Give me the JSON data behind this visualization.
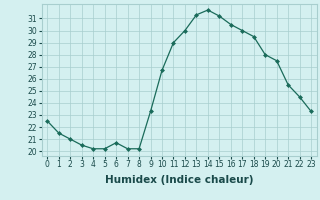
{
  "x": [
    0,
    1,
    2,
    3,
    4,
    5,
    6,
    7,
    8,
    9,
    10,
    11,
    12,
    13,
    14,
    15,
    16,
    17,
    18,
    19,
    20,
    21,
    22,
    23
  ],
  "y": [
    22.5,
    21.5,
    21.0,
    20.5,
    20.2,
    20.2,
    20.7,
    20.2,
    20.2,
    23.3,
    26.7,
    29.0,
    30.0,
    31.3,
    31.7,
    31.2,
    30.5,
    30.0,
    29.5,
    28.0,
    27.5,
    25.5,
    24.5,
    23.3
  ],
  "line_color": "#1a6b5a",
  "marker": "D",
  "marker_size": 2.0,
  "bg_color": "#d4f0f0",
  "grid_color": "#a8cece",
  "xlabel": "Humidex (Indice chaleur)",
  "ylabel_ticks": [
    20,
    21,
    22,
    23,
    24,
    25,
    26,
    27,
    28,
    29,
    30,
    31
  ],
  "ylim": [
    19.6,
    32.2
  ],
  "xlim": [
    -0.5,
    23.5
  ],
  "xticks": [
    0,
    1,
    2,
    3,
    4,
    5,
    6,
    7,
    8,
    9,
    10,
    11,
    12,
    13,
    14,
    15,
    16,
    17,
    18,
    19,
    20,
    21,
    22,
    23
  ],
  "xtick_labels": [
    "0",
    "1",
    "2",
    "3",
    "4",
    "5",
    "6",
    "7",
    "8",
    "9",
    "10",
    "11",
    "12",
    "13",
    "14",
    "15",
    "16",
    "17",
    "18",
    "19",
    "20",
    "21",
    "22",
    "23"
  ],
  "tick_fontsize": 5.5,
  "xlabel_fontsize": 7.5,
  "label_color": "#1a4a4a"
}
